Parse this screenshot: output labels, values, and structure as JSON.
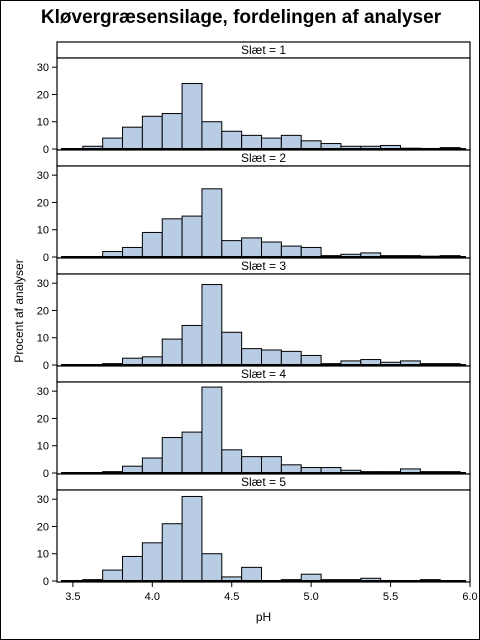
{
  "title": "Kløvergræsensilage, fordelingen af analyser",
  "chart_data": {
    "type": "bar",
    "title": "Kløvergræsensilage, fordelingen af analyser",
    "xlabel": "pH",
    "ylabel": "Procent af analyser",
    "xlim": [
      3.4,
      6.0
    ],
    "ylim": [
      0,
      33
    ],
    "x_ticks": [
      "3.5",
      "4.0",
      "4.5",
      "5.0",
      "5.5",
      "6.0"
    ],
    "y_ticks": [
      "0",
      "10",
      "20",
      "30"
    ],
    "bin_width": 0.125,
    "bin_centers": [
      3.5,
      3.625,
      3.75,
      3.875,
      4.0,
      4.125,
      4.25,
      4.375,
      4.5,
      4.625,
      4.75,
      4.875,
      5.0,
      5.125,
      5.25,
      5.375,
      5.5,
      5.625,
      5.75,
      5.875
    ],
    "bar_fill": "#b8cce4",
    "bar_stroke": "#000000",
    "panels": [
      {
        "label": "Slæt = 1",
        "values": [
          0,
          1,
          4,
          8,
          12,
          13,
          24,
          10,
          6.5,
          5,
          4,
          5,
          3,
          2,
          1,
          1,
          1.3,
          0.3,
          0.2,
          0.5
        ]
      },
      {
        "label": "Slæt = 2",
        "values": [
          0,
          0,
          2,
          3.5,
          9,
          14,
          15,
          25,
          6,
          7,
          5.5,
          4,
          3.5,
          0.5,
          1,
          1.5,
          0.5,
          0.5,
          0.3,
          0.5
        ]
      },
      {
        "label": "Slæt = 3",
        "values": [
          0,
          0,
          0.5,
          2.5,
          3,
          9.5,
          14.5,
          29.5,
          12,
          6,
          5.5,
          5,
          3.5,
          0.5,
          1.5,
          2,
          1,
          1.5,
          0.5,
          0.5
        ]
      },
      {
        "label": "Slæt = 4",
        "values": [
          0,
          0,
          0.5,
          2.5,
          5.5,
          13,
          15,
          31.5,
          8.5,
          6,
          6,
          3,
          2,
          2,
          1,
          0.5,
          0.5,
          1.5,
          0.5,
          0.5
        ]
      },
      {
        "label": "Slæt = 5",
        "values": [
          0,
          0.5,
          4,
          9,
          14,
          21,
          31,
          10,
          1.5,
          5,
          0,
          0.5,
          2.5,
          0.5,
          0.5,
          1,
          0,
          0,
          0.5,
          0
        ]
      }
    ]
  }
}
